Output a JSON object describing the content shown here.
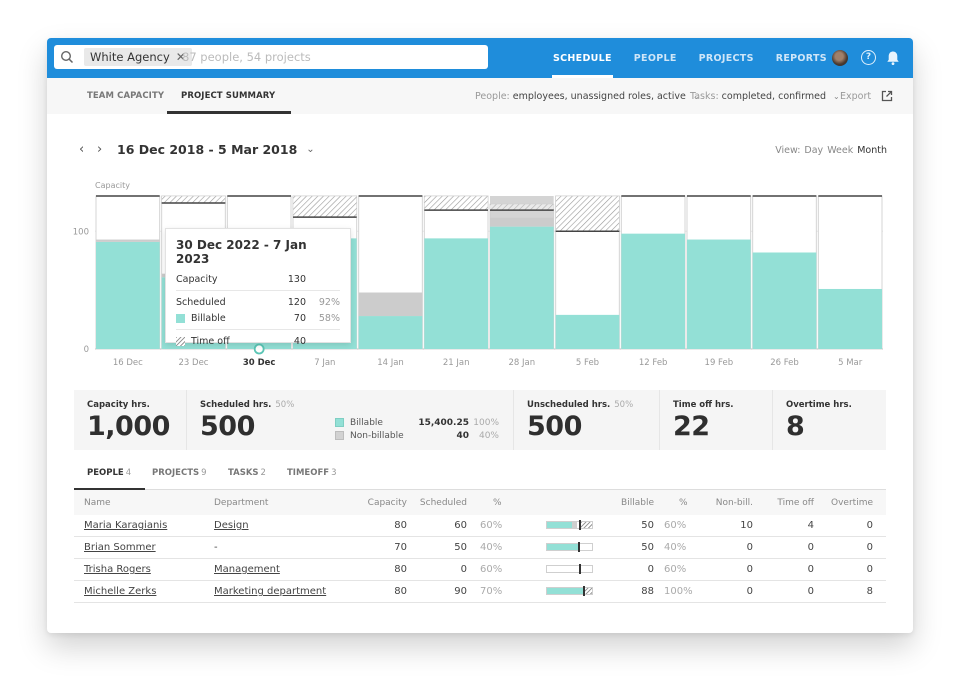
{
  "topbar": {
    "search_chip": "White Agency",
    "search_placeholder": "87 people, 54 projects",
    "nav": [
      {
        "label": "SCHEDULE",
        "active": true
      },
      {
        "label": "PEOPLE",
        "active": false
      },
      {
        "label": "PROJECTS",
        "active": false
      },
      {
        "label": "REPORTS",
        "active": false
      }
    ],
    "help_glyph": "?"
  },
  "subnav": {
    "tabs": [
      {
        "label": "TEAM CAPACITY",
        "active": false
      },
      {
        "label": "PROJECT SUMMARY",
        "active": true
      }
    ],
    "people_filter_label": "People:",
    "people_filter_value": "employees, unassigned roles, active",
    "tasks_filter_label": "Tasks:",
    "tasks_filter_value": "completed, confirmed",
    "export_label": "Export",
    "chevron": "⌄"
  },
  "date_range": {
    "prev": "‹",
    "next": "›",
    "title": "16 Dec 2018 - 5 Mar 2018",
    "chevron": "⌄"
  },
  "view": {
    "label": "View:",
    "options": [
      {
        "label": "Day",
        "active": false
      },
      {
        "label": "Week",
        "active": false
      },
      {
        "label": "Month",
        "active": true
      }
    ]
  },
  "chart_data": {
    "type": "bar",
    "title": "",
    "ylabel": "Capacity",
    "xlabel": "",
    "ylim": [
      0,
      130
    ],
    "yticks": [
      0,
      100
    ],
    "grid": true,
    "categories": [
      "16 Dec",
      "23 Dec",
      "30 Dec",
      "7 Jan",
      "14 Jan",
      "21 Jan",
      "28 Jan",
      "5 Feb",
      "12 Feb",
      "19 Feb",
      "26 Feb",
      "5 Mar"
    ],
    "selected_category": "30 Dec",
    "series": [
      {
        "name": "Billable",
        "color": "#93e0d6",
        "values": [
          91,
          61,
          70,
          94,
          28,
          94,
          104,
          29,
          98,
          93,
          82,
          51
        ]
      },
      {
        "name": "Non-billable",
        "color": "#cccccc",
        "values": [
          2,
          3,
          0,
          0,
          20,
          0,
          8,
          0,
          0,
          0,
          0,
          0
        ]
      },
      {
        "name": "Time off",
        "color": "hatch",
        "values": [
          0,
          6,
          0,
          18,
          0,
          12,
          5,
          30,
          0,
          0,
          0,
          0
        ]
      },
      {
        "name": "Overtime",
        "color": "#cccccc",
        "values": [
          0,
          0,
          0,
          0,
          0,
          0,
          7,
          0,
          0,
          0,
          0,
          0
        ]
      }
    ],
    "capacity": [
      130,
      124,
      130,
      112,
      130,
      118,
      118,
      100,
      130,
      130,
      130,
      130
    ]
  },
  "tooltip": {
    "title": "30 Dec 2022 - 7 Jan 2023",
    "capacity_label": "Capacity",
    "capacity_value": "130",
    "scheduled_label": "Scheduled",
    "scheduled_value": "120",
    "scheduled_pct": "92%",
    "billable_label": "Billable",
    "billable_value": "70",
    "billable_pct": "58%",
    "timeoff_label": "Time off",
    "timeoff_value": "40"
  },
  "stats": {
    "capacity": {
      "label": "Capacity hrs.",
      "value": "1,000"
    },
    "scheduled": {
      "label": "Scheduled hrs.",
      "pct": "50%",
      "value": "500",
      "legend": [
        {
          "name": "Billable",
          "value": "15,400.25",
          "pct": "100%"
        },
        {
          "name": "Non-billable",
          "value": "40",
          "pct": "40%"
        }
      ]
    },
    "unscheduled": {
      "label": "Unscheduled hrs.",
      "pct": "50%",
      "value": "500"
    },
    "timeoff": {
      "label": "Time off hrs.",
      "value": "22"
    },
    "overtime": {
      "label": "Overtime hrs.",
      "value": "8"
    }
  },
  "tabs": [
    {
      "label": "PEOPLE",
      "count": "4",
      "active": true
    },
    {
      "label": "PROJECTS",
      "count": "9",
      "active": false
    },
    {
      "label": "TASKS",
      "count": "2",
      "active": false
    },
    {
      "label": "TIMEOFF",
      "count": "3",
      "active": false
    }
  ],
  "table": {
    "columns": {
      "name": "Name",
      "department": "Department",
      "capacity": "Capacity",
      "scheduled": "Scheduled",
      "sched_pct": "%",
      "billable": "Billable",
      "bill_pct": "%",
      "nonbill": "Non-bill.",
      "timeoff": "Time off",
      "overtime": "Overtime"
    },
    "rows": [
      {
        "name": "Maria Karagianis",
        "department": "Design",
        "capacity": "80",
        "scheduled": "60",
        "sched_pct": "60%",
        "billable": "50",
        "bill_pct": "60%",
        "nonbill": "10",
        "timeoff": "4",
        "overtime": "0",
        "bar": {
          "billable": 0.55,
          "nonbillable": 0.12,
          "capacity_mark": 0.72,
          "timeoff": 0.25
        }
      },
      {
        "name": "Brian Sommer",
        "department": "-",
        "capacity": "70",
        "scheduled": "50",
        "sched_pct": "40%",
        "billable": "50",
        "bill_pct": "40%",
        "nonbill": "0",
        "timeoff": "0",
        "overtime": "0",
        "bar": {
          "billable": 0.68,
          "nonbillable": 0,
          "capacity_mark": 0.68,
          "timeoff": 0
        }
      },
      {
        "name": "Trisha Rogers",
        "department": "Management",
        "capacity": "80",
        "scheduled": "0",
        "sched_pct": "60%",
        "billable": "0",
        "bill_pct": "60%",
        "nonbill": "0",
        "timeoff": "0",
        "overtime": "0",
        "bar": {
          "billable": 0,
          "nonbillable": 0,
          "capacity_mark": 0.7,
          "timeoff": 0
        }
      },
      {
        "name": "Michelle Zerks",
        "department": "Marketing department",
        "capacity": "80",
        "scheduled": "90",
        "sched_pct": "70%",
        "billable": "88",
        "bill_pct": "100%",
        "nonbill": "0",
        "timeoff": "0",
        "overtime": "8",
        "bar": {
          "billable": 0.8,
          "nonbillable": 0,
          "capacity_mark": 0.8,
          "timeoff": 0.2
        }
      }
    ]
  }
}
